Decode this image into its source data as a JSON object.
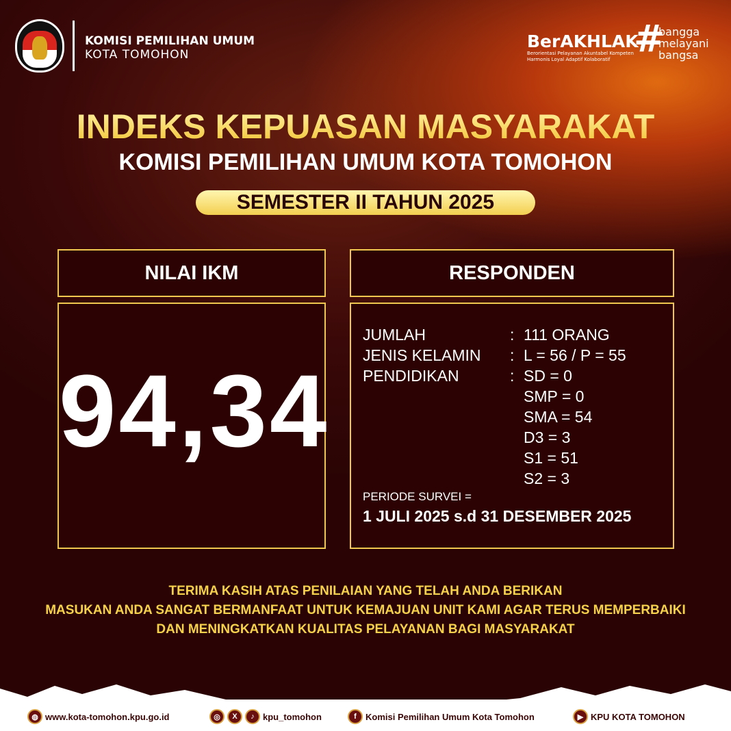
{
  "header": {
    "org_line1": "KOMISI PEMILIHAN UMUM",
    "org_line2": "KOTA TOMOHON",
    "logo_text": "KOMISI PEMILIHAN UMUM",
    "berakhlak": "BerAKHLAK",
    "berakhlak_sub": "Berorientasi Pelayanan Akuntabel Kompeten Harmonis Loyal Adaptif Kolaboratif",
    "hashtag": [
      "bangga",
      "melayani",
      "bangsa"
    ]
  },
  "title": "INDEKS KEPUASAN MASYARAKAT",
  "subtitle": "KOMISI PEMILIHAN UMUM KOTA TOMOHON",
  "period_badge": "SEMESTER II TAHUN 2025",
  "ikm": {
    "label": "NILAI IKM",
    "value": "94,34"
  },
  "responden": {
    "label": "RESPONDEN",
    "rows": [
      {
        "key": "JUMLAH",
        "sep": ":",
        "value": "111 ORANG"
      },
      {
        "key": "JENIS KELAMIN",
        "sep": ":",
        "value": "L = 56 / P = 55"
      },
      {
        "key": "PENDIDIKAN",
        "sep": ":",
        "value": "SD = 0"
      }
    ],
    "education_more": [
      "SMP = 0",
      "SMA = 54",
      "D3 = 3",
      "S1 = 51",
      "S2 = 3"
    ],
    "periode_label": "PERIODE SURVEI =",
    "periode_value": "1 JULI 2025 s.d 31 DESEMBER 2025"
  },
  "message": [
    "TERIMA KASIH ATAS PENILAIAN YANG TELAH ANDA BERIKAN",
    "MASUKAN ANDA SANGAT BERMANFAAT UNTUK KEMAJUAN UNIT KAMI AGAR TERUS MEMPERBAIKI",
    "DAN MENINGKATKAN KUALITAS PELAYANAN BAGI MASYARAKAT"
  ],
  "footer": {
    "website": "www.kota-tomohon.kpu.go.id",
    "social_handle": "kpu_tomohon",
    "facebook": "Komisi Pemilihan Umum Kota Tomohon",
    "youtube": "KPU KOTA TOMOHON"
  },
  "colors": {
    "accent": "#f2c94c",
    "box_bg": "#2c0202",
    "footer_icon": "#6a0f0f"
  }
}
